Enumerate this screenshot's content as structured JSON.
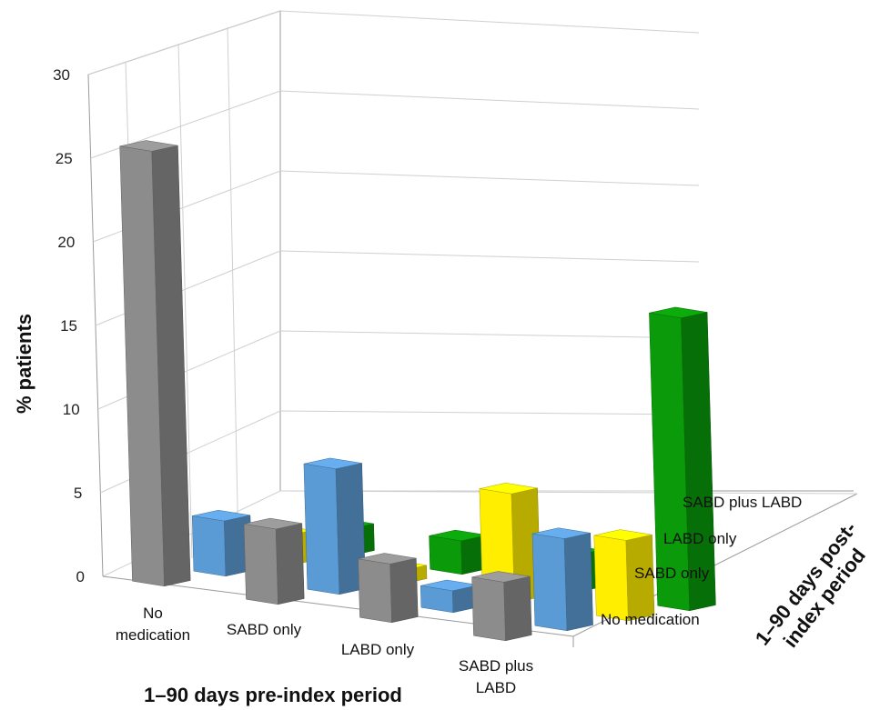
{
  "chart_data": {
    "type": "bar3d",
    "ylabel": "% patients",
    "xlabel": "1–90 days pre-index period",
    "zlabel_lines": [
      "1–90 days post-",
      "index period"
    ],
    "ylim": [
      0,
      30
    ],
    "yticks": [
      "0",
      "5",
      "10",
      "15",
      "20",
      "25",
      "30"
    ],
    "categories": [
      [
        "No",
        "medication"
      ],
      [
        "SABD only"
      ],
      [
        "LABD only"
      ],
      [
        "SABD plus",
        "LABD"
      ]
    ],
    "series": [
      {
        "name": "No medication",
        "color": "#8c8c8c",
        "values": [
          26,
          4.5,
          3.5,
          3.5
        ]
      },
      {
        "name": "SABD only",
        "color": "#5b9bd5",
        "values": [
          3.3,
          7.5,
          1.3,
          5.5
        ]
      },
      {
        "name": "LABD only",
        "color": "#ffee00",
        "values": [
          1.8,
          0.8,
          6.5,
          4.8
        ]
      },
      {
        "name": "SABD plus LABD",
        "color": "#0a9a0a",
        "values": [
          1.6,
          2.0,
          2.2,
          17.5
        ]
      }
    ]
  }
}
